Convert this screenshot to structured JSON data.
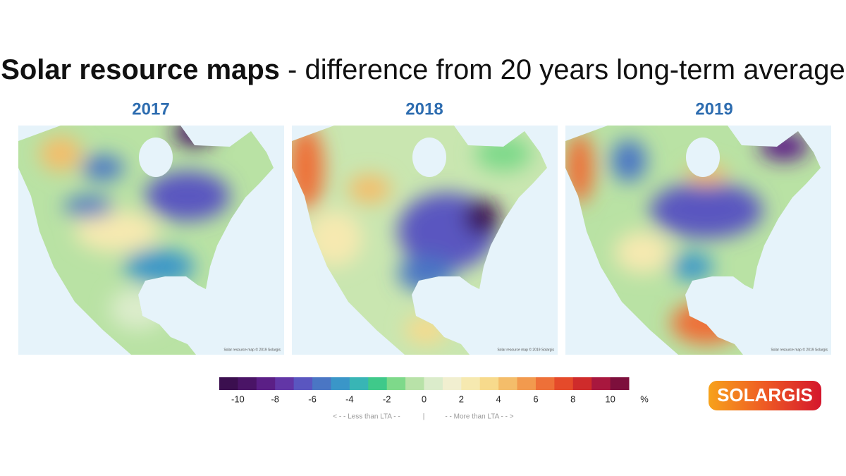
{
  "title": {
    "bold": "Solar resource maps",
    "rest": " - difference from 20 years long-term average"
  },
  "maps": [
    {
      "year": "2017",
      "credit": "Solar resource map © 2019 Solargis"
    },
    {
      "year": "2018",
      "credit": "Solar resource map © 2019 Solargis"
    },
    {
      "year": "2019",
      "credit": "Solar resource map © 2019 Solargis"
    }
  ],
  "legend": {
    "range": [
      -11,
      11
    ],
    "ticks": [
      -10,
      -8,
      -6,
      -4,
      -2,
      0,
      2,
      4,
      6,
      8,
      10
    ],
    "unit": "%",
    "colors": [
      "#3b0f4f",
      "#4a1466",
      "#5b1f86",
      "#6236a6",
      "#5a56c0",
      "#4a76c4",
      "#3a96c8",
      "#38b5b5",
      "#3fc98a",
      "#7ed98a",
      "#b8e2a8",
      "#dbeccb",
      "#f1efd0",
      "#f6e9b0",
      "#f7da8c",
      "#f4bd6a",
      "#f29a4e",
      "#ee7038",
      "#e54a2a",
      "#cf2b2b",
      "#a8173e",
      "#7d0f3c"
    ],
    "less": "< - -  Less than LTA  - -",
    "divider": "|",
    "more": "- -  More than LTA  - - >"
  },
  "logo": "SOLARGIS"
}
